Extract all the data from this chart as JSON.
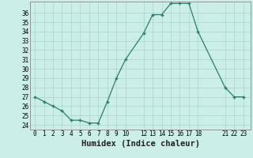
{
  "x": [
    0,
    1,
    2,
    3,
    4,
    5,
    6,
    7,
    8,
    9,
    10,
    12,
    13,
    14,
    15,
    16,
    17,
    18,
    21,
    22,
    23
  ],
  "y": [
    27,
    26.5,
    26,
    25.5,
    24.5,
    24.5,
    24.2,
    24.2,
    26.5,
    29,
    31,
    33.8,
    35.8,
    35.8,
    37,
    37,
    37,
    34,
    28,
    27,
    27
  ],
  "xlabel": "Humidex (Indice chaleur)",
  "xticks": [
    0,
    1,
    2,
    3,
    4,
    5,
    6,
    7,
    8,
    9,
    10,
    12,
    13,
    14,
    15,
    16,
    17,
    18,
    21,
    22,
    23
  ],
  "yticks": [
    24,
    25,
    26,
    27,
    28,
    29,
    30,
    31,
    32,
    33,
    34,
    35,
    36
  ],
  "ylim": [
    23.5,
    37.2
  ],
  "xlim": [
    -0.5,
    23.8
  ],
  "line_color": "#2d7b6e",
  "bg_color": "#cceee8",
  "grid_color": "#aad4cc",
  "spine_color": "#888888",
  "xlabel_fontsize": 7.5,
  "tick_fontsize": 5.5
}
